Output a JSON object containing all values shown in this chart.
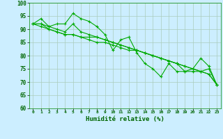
{
  "title": "",
  "xlabel": "Humidité relative (%)",
  "ylabel": "",
  "background_color": "#cceeff",
  "grid_color": "#aaccbb",
  "line_color": "#00aa00",
  "xlim": [
    -0.5,
    23.5
  ],
  "ylim": [
    60,
    100
  ],
  "yticks": [
    60,
    65,
    70,
    75,
    80,
    85,
    90,
    95,
    100
  ],
  "xticks": [
    0,
    1,
    2,
    3,
    4,
    5,
    6,
    7,
    8,
    9,
    10,
    11,
    12,
    13,
    14,
    15,
    16,
    17,
    18,
    19,
    20,
    21,
    22,
    23
  ],
  "series": [
    [
      92,
      94,
      91,
      92,
      92,
      96,
      94,
      93,
      91,
      88,
      82,
      86,
      87,
      81,
      77,
      75,
      72,
      77,
      74,
      74,
      75,
      79,
      76,
      69
    ],
    [
      92,
      92,
      91,
      90,
      89,
      92,
      89,
      88,
      87,
      86,
      85,
      84,
      83,
      82,
      81,
      80,
      79,
      78,
      77,
      76,
      75,
      74,
      73,
      69
    ],
    [
      92,
      92,
      90,
      89,
      88,
      88,
      87,
      87,
      87,
      86,
      85,
      84,
      83,
      82,
      81,
      80,
      79,
      78,
      77,
      76,
      75,
      74,
      73,
      69
    ],
    [
      92,
      91,
      90,
      89,
      88,
      88,
      87,
      86,
      85,
      85,
      84,
      83,
      82,
      82,
      81,
      80,
      79,
      78,
      77,
      74,
      74,
      74,
      75,
      69
    ]
  ]
}
